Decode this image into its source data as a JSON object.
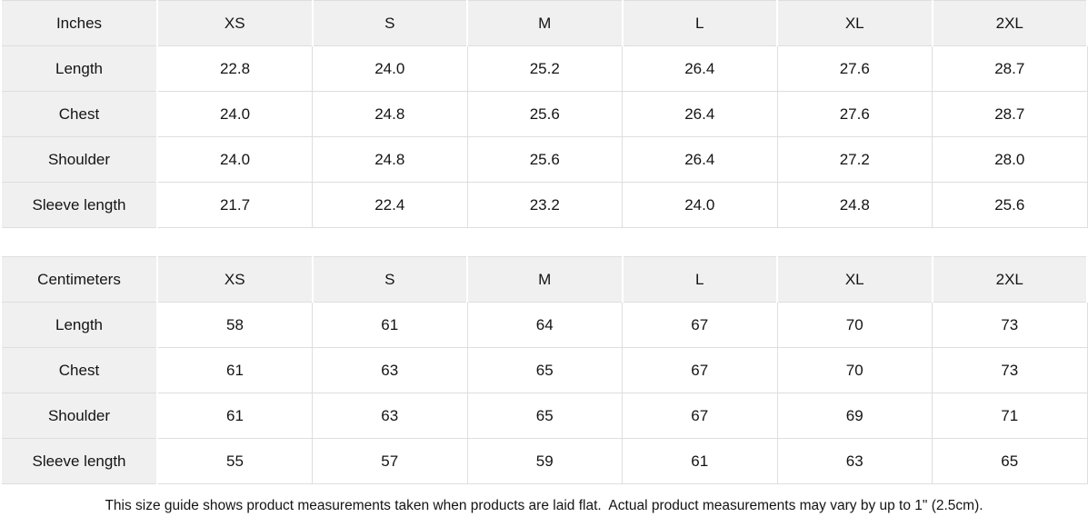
{
  "chart_data": [
    {
      "type": "table",
      "title": "Inches size chart",
      "columns": [
        "Inches",
        "XS",
        "S",
        "M",
        "L",
        "XL",
        "2XL"
      ],
      "rows": [
        {
          "label": "Length",
          "values": [
            "22.8",
            "24.0",
            "25.2",
            "26.4",
            "27.6",
            "28.7"
          ]
        },
        {
          "label": "Chest",
          "values": [
            "24.0",
            "24.8",
            "25.6",
            "26.4",
            "27.6",
            "28.7"
          ]
        },
        {
          "label": "Shoulder",
          "values": [
            "24.0",
            "24.8",
            "25.6",
            "26.4",
            "27.2",
            "28.0"
          ]
        },
        {
          "label": "Sleeve length",
          "values": [
            "21.7",
            "22.4",
            "23.2",
            "24.0",
            "24.8",
            "25.6"
          ]
        }
      ]
    },
    {
      "type": "table",
      "title": "Centimeters size chart",
      "columns": [
        "Centimeters",
        "XS",
        "S",
        "M",
        "L",
        "XL",
        "2XL"
      ],
      "rows": [
        {
          "label": "Length",
          "values": [
            "58",
            "61",
            "64",
            "67",
            "70",
            "73"
          ]
        },
        {
          "label": "Chest",
          "values": [
            "61",
            "63",
            "65",
            "67",
            "70",
            "73"
          ]
        },
        {
          "label": "Shoulder",
          "values": [
            "61",
            "63",
            "65",
            "67",
            "69",
            "71"
          ]
        },
        {
          "label": "Sleeve length",
          "values": [
            "55",
            "57",
            "59",
            "61",
            "63",
            "65"
          ]
        }
      ]
    }
  ],
  "footer": {
    "note": "This size guide shows product measurements taken when products are laid flat.  Actual product measurements may vary by up to 1\" (2.5cm)."
  },
  "colors": {
    "header_background": "#f0f0f0",
    "grid_line": "#dedede",
    "text": "#141414"
  }
}
